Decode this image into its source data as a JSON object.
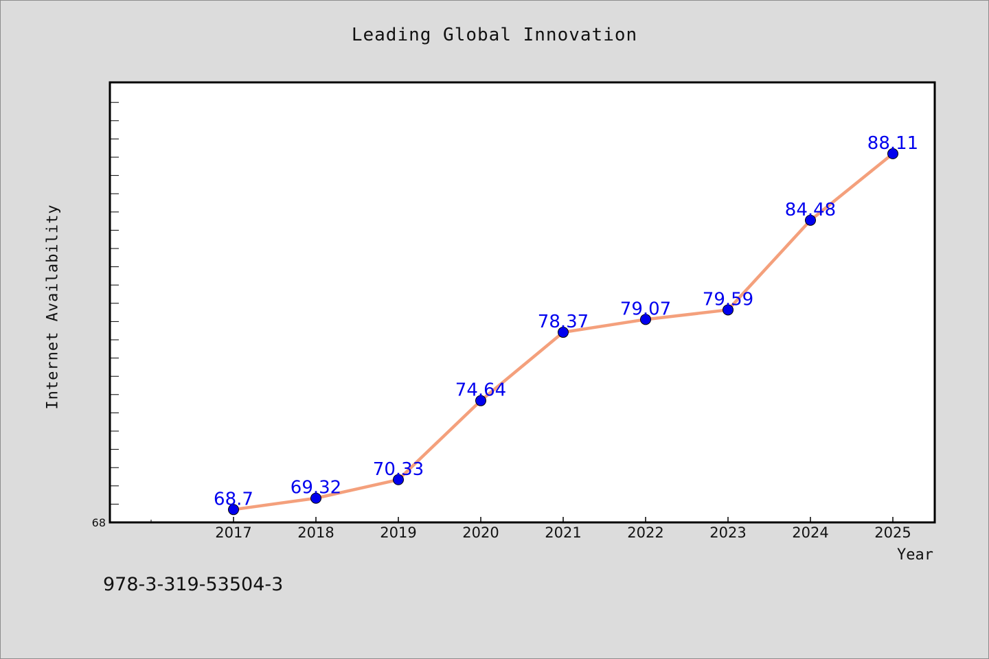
{
  "chart_data": {
    "type": "line",
    "title": "Leading Global Innovation",
    "xlabel": "Year",
    "ylabel": "Internet Availability",
    "categories": [
      "2017",
      "2018",
      "2019",
      "2020",
      "2021",
      "2022",
      "2023",
      "2024",
      "2025"
    ],
    "series": [
      {
        "values": [
          68.7,
          69.32,
          70.33,
          74.64,
          78.37,
          79.07,
          79.59,
          84.48,
          88.11
        ],
        "data_labels": [
          "68.7",
          "69.32",
          "70.33",
          "74.64",
          "78.37",
          "79.07",
          "79.59",
          "84.48",
          "88.11"
        ],
        "line_color": "#f4a07c",
        "marker_color": "#0000ee",
        "label_color": "#0000ee"
      }
    ],
    "ylim": [
      68,
      92
    ],
    "y_tick_labels": [
      "68"
    ],
    "grid": false,
    "legend": "none"
  },
  "footer": {
    "code": "978-3-319-53504-3"
  }
}
